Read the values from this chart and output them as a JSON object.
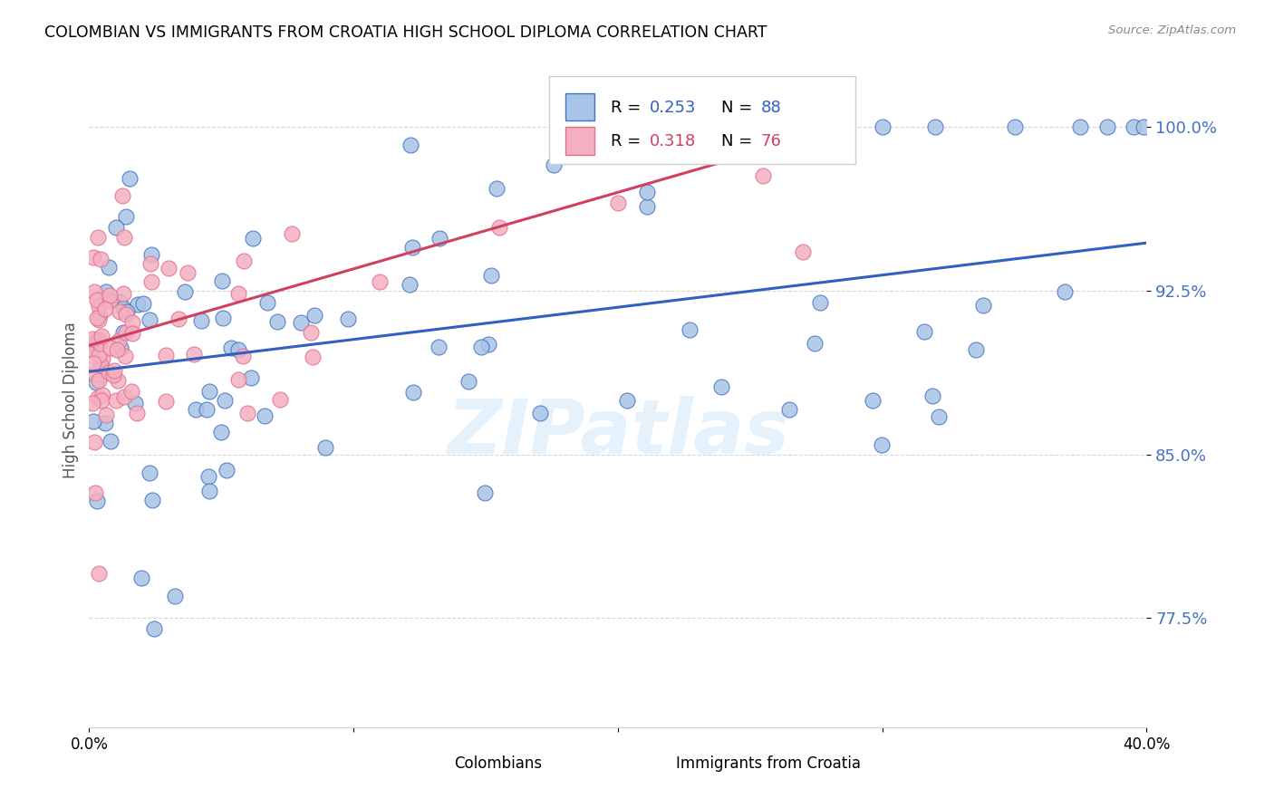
{
  "title": "COLOMBIAN VS IMMIGRANTS FROM CROATIA HIGH SCHOOL DIPLOMA CORRELATION CHART",
  "source": "Source: ZipAtlas.com",
  "ylabel": "High School Diploma",
  "xmin": 0.0,
  "xmax": 0.4,
  "ymin": 0.725,
  "ymax": 1.025,
  "ytick_vals": [
    0.775,
    0.85,
    0.925,
    1.0
  ],
  "ytick_labels": [
    "77.5%",
    "85.0%",
    "92.5%",
    "100.0%"
  ],
  "xtick_vals": [
    0.0,
    0.1,
    0.2,
    0.3,
    0.4
  ],
  "xtick_labels": [
    "0.0%",
    "",
    "",
    "",
    "40.0%"
  ],
  "color_colombians_face": "#a8c4e6",
  "color_colombians_edge": "#4472c4",
  "color_croatia_face": "#f4afc0",
  "color_croatia_edge": "#e07090",
  "color_trendline_blue": "#3060c0",
  "color_trendline_pink": "#d04060",
  "color_ytick_labels": "#4472c4",
  "legend_label1": "Colombians",
  "legend_label2": "Immigrants from Croatia",
  "watermark": "ZIPatlas",
  "r1": "0.253",
  "n1": "88",
  "r2": "0.318",
  "n2": "76",
  "trendline_blue_x0": 0.0,
  "trendline_blue_x1": 0.4,
  "trendline_blue_y0": 0.888,
  "trendline_blue_y1": 0.947,
  "trendline_pink_x0": 0.0,
  "trendline_pink_x1": 0.285,
  "trendline_pink_y0": 0.9,
  "trendline_pink_y1": 1.0
}
